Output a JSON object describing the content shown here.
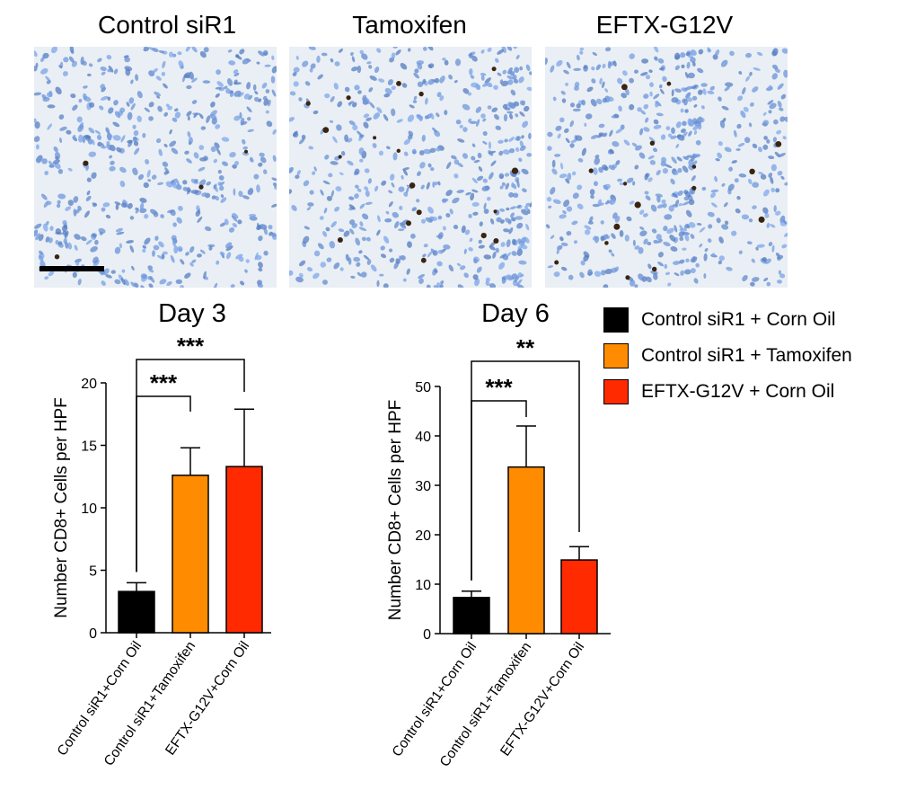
{
  "panels": [
    {
      "title": "Control siR1"
    },
    {
      "title": "Tamoxifen"
    },
    {
      "title": "EFTX-G12V"
    }
  ],
  "legend": {
    "items": [
      {
        "label": "Control siR1 + Corn Oil",
        "color": "#000000"
      },
      {
        "label": "Control siR1 + Tamoxifen",
        "color": "#ff8c00"
      },
      {
        "label": "EFTX-G12V + Corn Oil",
        "color": "#ff2a00"
      }
    ]
  },
  "chart_data": [
    {
      "type": "bar",
      "title": "Day 3",
      "ylabel": "Number CD8+ Cells per HPF",
      "ylim": [
        0,
        20
      ],
      "yticks": [
        0,
        5,
        10,
        15,
        20
      ],
      "categories": [
        "Control siR1+Corn Oil",
        "Control siR1+Tamoxifen",
        "EFTX-G12V+Corn Oil"
      ],
      "values": [
        3.3,
        12.6,
        13.3
      ],
      "errors": [
        0.7,
        2.2,
        4.6
      ],
      "colors": [
        "#000000",
        "#ff8c00",
        "#ff2a00"
      ],
      "significance": [
        {
          "from": 0,
          "to": 1,
          "label": "***"
        },
        {
          "from": 0,
          "to": 2,
          "label": "***"
        }
      ]
    },
    {
      "type": "bar",
      "title": "Day 6",
      "ylabel": "Number CD8+ Cells per HPF",
      "ylim": [
        0,
        50
      ],
      "yticks": [
        0,
        10,
        20,
        30,
        40,
        50
      ],
      "categories": [
        "Control siR1+Corn Oil",
        "Control siR1+Tamoxifen",
        "EFTX-G12V+Corn Oil"
      ],
      "values": [
        7.3,
        33.7,
        14.9
      ],
      "errors": [
        1.3,
        8.3,
        2.7
      ],
      "colors": [
        "#000000",
        "#ff8c00",
        "#ff2a00"
      ],
      "significance": [
        {
          "from": 0,
          "to": 1,
          "label": "***"
        },
        {
          "from": 0,
          "to": 2,
          "label": "**"
        }
      ]
    }
  ]
}
